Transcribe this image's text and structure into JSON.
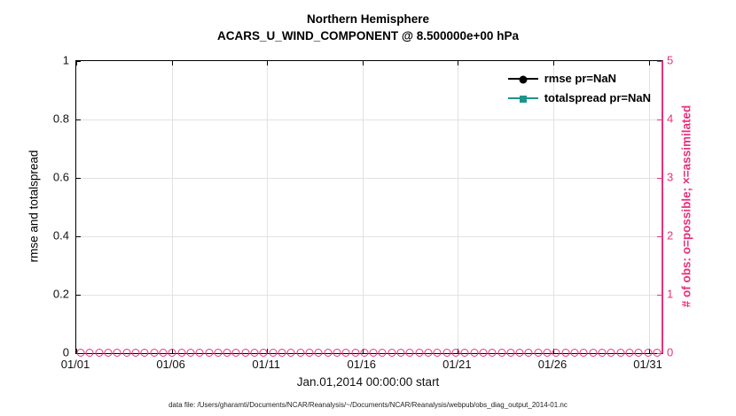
{
  "title": {
    "line1": "Northern Hemisphere",
    "line2": "ACARS_U_WIND_COMPONENT @ 8.500000e+00 hPa"
  },
  "colors": {
    "obs_axis": "#e8327c",
    "rmse": "#000000",
    "totalspread": "#1f948b",
    "grid": "#e2e2e2"
  },
  "left_axis": {
    "label": "rmse and totalspread",
    "ticks": [
      "0",
      "0.2",
      "0.4",
      "0.6",
      "0.8",
      "1"
    ],
    "min": 0,
    "max": 1
  },
  "right_axis": {
    "label": "# of obs: o=possible; ×=assimilated",
    "ticks": [
      "0",
      "1",
      "2",
      "3",
      "4",
      "5"
    ],
    "min": 0,
    "max": 5
  },
  "x_axis": {
    "label": "Jan.01,2014 00:00:00 start",
    "ticks": [
      "01/01",
      "01/06",
      "01/11",
      "01/16",
      "01/21",
      "01/26",
      "01/31"
    ],
    "tick_days": [
      0,
      5,
      10,
      15,
      20,
      25,
      30
    ],
    "span_days": 30.67
  },
  "legend": [
    {
      "label": "rmse pr=NaN",
      "marker": "circle",
      "color": "#000000"
    },
    {
      "label": "totalspread pr=NaN",
      "marker": "square",
      "color": "#1f948b"
    }
  ],
  "obs_markers": {
    "count": 64,
    "value": 0,
    "marker": "circle-open"
  },
  "footer": "data file: /Users/gharamti/Documents/NCAR/Reanalysis/~/Documents/NCAR/Reanalysis/webpub/obs_diag_output_2014-01.nc",
  "chart_data": {
    "type": "line",
    "title": "Northern Hemisphere — ACARS_U_WIND_COMPONENT @ 8.500000e+00 hPa",
    "xlabel": "Jan.01,2014 00:00:00 start",
    "ylabel": "rmse and totalspread",
    "ylabel_right": "# of obs: o=possible; ×=assimilated",
    "x_tick_labels": [
      "01/01",
      "01/06",
      "01/11",
      "01/16",
      "01/21",
      "01/26",
      "01/31"
    ],
    "ylim_left": [
      0,
      1
    ],
    "ylim_right": [
      0,
      5
    ],
    "grid": true,
    "legend_position": "upper right inside",
    "series": [
      {
        "name": "rmse pr=NaN",
        "axis": "left",
        "marker": "circle",
        "color": "#000000",
        "values": null,
        "note": "all values NaN — no line drawn"
      },
      {
        "name": "totalspread pr=NaN",
        "axis": "left",
        "marker": "square",
        "color": "#1f948b",
        "values": null,
        "note": "all values NaN — no line drawn"
      },
      {
        "name": "# of obs possible (o)",
        "axis": "right",
        "marker": "circle-open",
        "color": "#e8327c",
        "value_constant": 0,
        "note": "dense row of open circles at y=0 spanning Jan 1 – Jan 31"
      },
      {
        "name": "# of obs assimilated (×)",
        "axis": "right",
        "marker": "x",
        "color": "#e8327c",
        "value_constant": 0,
        "note": "overlaps the circle markers at y=0"
      }
    ]
  }
}
